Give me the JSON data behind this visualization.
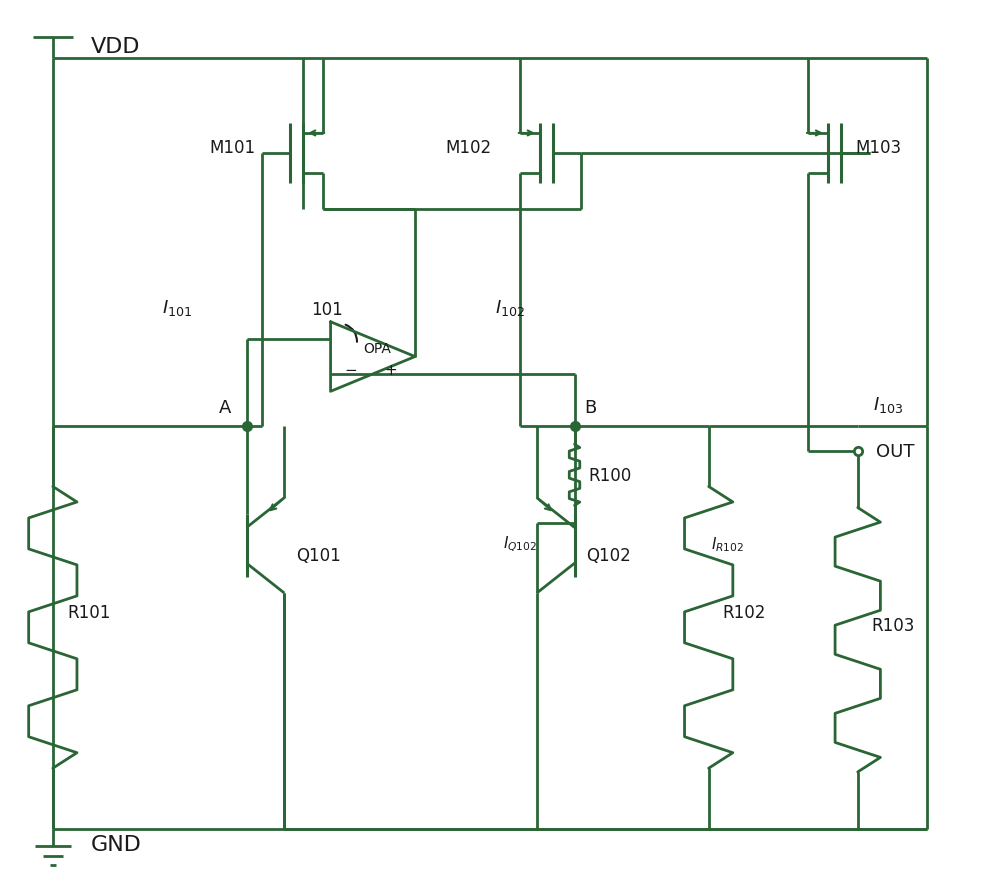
{
  "bg": "#ffffff",
  "c": "#2a6535",
  "lw": 2.0,
  "lw_comp": 2.0,
  "fw": 10.0,
  "fh": 8.87,
  "VDD": "VDD",
  "GND": "GND",
  "OUT": "OUT",
  "OPA": "OPA",
  "ref101": "101",
  "M101": "M101",
  "M102": "M102",
  "M103": "M103",
  "Q101": "Q101",
  "Q102": "Q102",
  "R100": "R100",
  "R101": "R101",
  "R102": "R102",
  "R103": "R103",
  "I101": "I_{101}",
  "I102": "I_{102}",
  "I103": "I_{103}",
  "IQ102": "I_{Q102}",
  "IR102": "I_{R102}",
  "A": "A",
  "B": "B",
  "xlim": [
    0,
    10
  ],
  "ylim": [
    0,
    8.87
  ],
  "VDD_y": 8.3,
  "GND_y": 0.55,
  "node_AB_y": 4.6,
  "mos_y": 7.35,
  "XL": 0.5,
  "XA": 2.45,
  "XM1": 2.8,
  "XM2": 5.4,
  "XB": 5.75,
  "XM3": 8.3,
  "XOUT": 8.6,
  "XR2": 7.1,
  "XR": 9.3,
  "font_large": 16,
  "font_med": 13,
  "font_small": 12,
  "font_tiny": 11
}
